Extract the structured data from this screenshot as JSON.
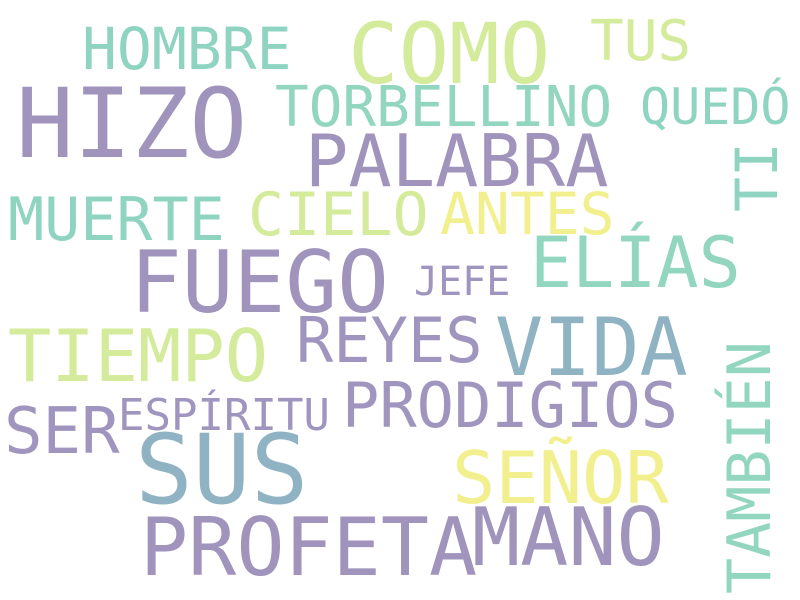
{
  "cloud": {
    "words": [
      {
        "text": "HOMBRE"
      },
      {
        "text": "COMO"
      },
      {
        "text": "TUS"
      },
      {
        "text": "HIZO"
      },
      {
        "text": "TORBELLINO"
      },
      {
        "text": "QUEDÓ"
      },
      {
        "text": "PALABRA"
      },
      {
        "text": "TI"
      },
      {
        "text": "MUERTE"
      },
      {
        "text": "CIELO"
      },
      {
        "text": "ANTES"
      },
      {
        "text": "ELÍAS"
      },
      {
        "text": "FUEGO"
      },
      {
        "text": "JEFE"
      },
      {
        "text": "TIEMPO"
      },
      {
        "text": "REYES"
      },
      {
        "text": "VIDA"
      },
      {
        "text": "TAMBIÉN"
      },
      {
        "text": "PRODIGIOS"
      },
      {
        "text": "ESPÍRITU"
      },
      {
        "text": "SER"
      },
      {
        "text": "SUS"
      },
      {
        "text": "SEÑOR"
      },
      {
        "text": "PROFETA"
      },
      {
        "text": "MANO"
      }
    ]
  }
}
